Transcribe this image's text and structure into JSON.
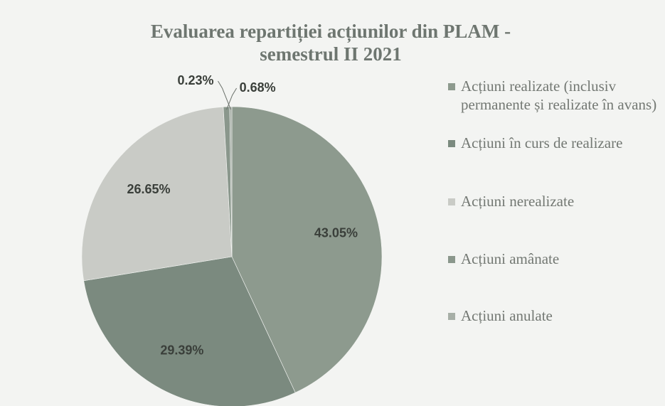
{
  "chart_data": {
    "type": "pie",
    "title": "Evaluarea repartiției acțiunilor din PLAM - semestrul II 2021",
    "categories": [
      "Acțiuni realizate (inclusiv permanente și realizate în avans)",
      "Acțiuni în curs de realizare",
      "Acțiuni nerealizate",
      "Acțiuni amânate",
      "Acțiuni anulate"
    ],
    "values": [
      43.05,
      29.39,
      26.65,
      0.68,
      0.23
    ],
    "value_labels": [
      "43.05%",
      "29.39%",
      "26.65%",
      "0.68%",
      "0.23%"
    ],
    "colors": [
      "#8d9a8e",
      "#7b8a7f",
      "#c9cbc6",
      "#8a978c",
      "#a7afa7"
    ],
    "legend": "right"
  }
}
